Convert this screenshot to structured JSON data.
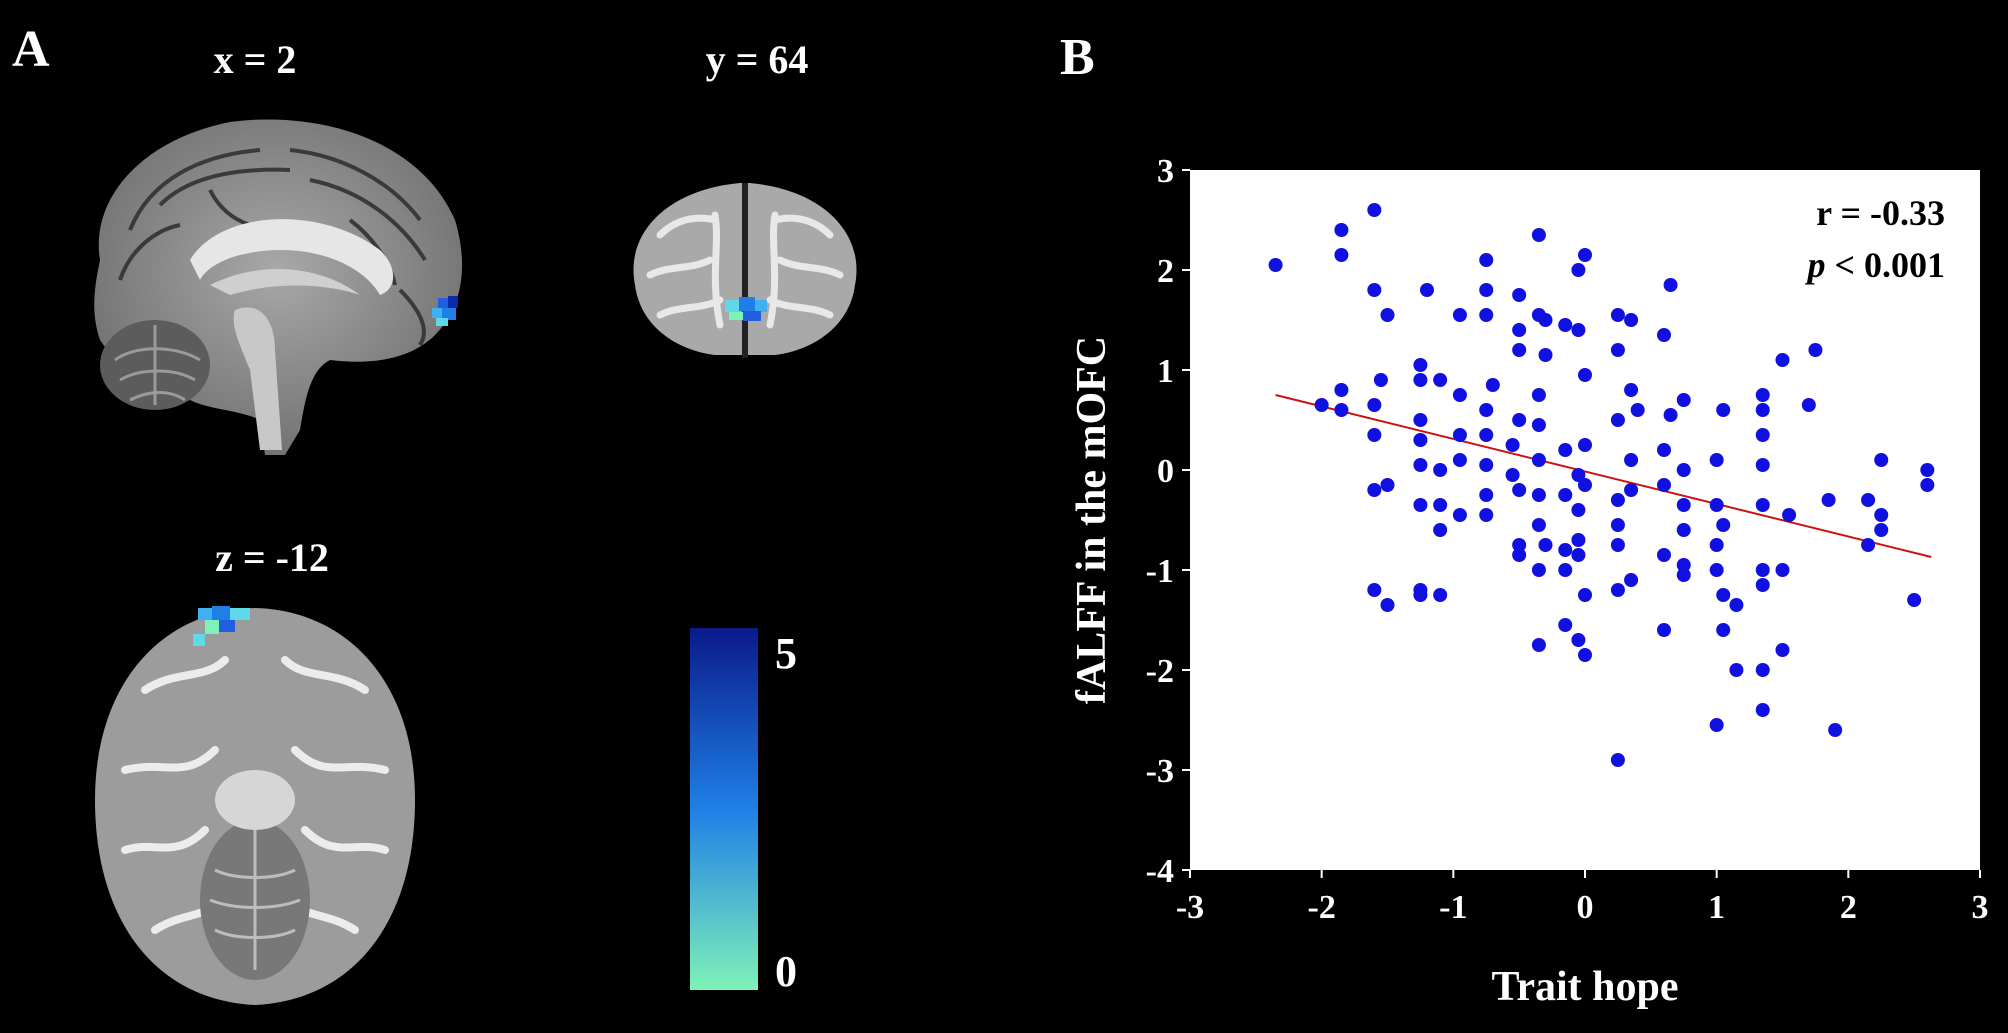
{
  "panels": {
    "a_label": "A",
    "b_label": "B"
  },
  "slices": {
    "sagittal": "x = 2",
    "coronal": "y = 64",
    "axial": "z = -12"
  },
  "colorbar": {
    "max_label": "5",
    "min_label": "0",
    "color_top": "#0a1a8a",
    "color_mid": "#1f7fe6",
    "color_bottom": "#7ff2b8"
  },
  "chart_data": {
    "type": "scatter",
    "xlabel": "Trait hope",
    "ylabel": "fALFF in the mOFC",
    "xlim": [
      -3,
      3
    ],
    "ylim": [
      -4,
      3
    ],
    "xticks": [
      -3,
      -2,
      -1,
      0,
      1,
      2,
      3
    ],
    "yticks": [
      -4,
      -3,
      -2,
      -1,
      0,
      1,
      2,
      3
    ],
    "annotation_r": "r = -0.33",
    "annotation_p_symbol": "p",
    "annotation_p_rest": " < 0.001",
    "point_color": "#1010e0",
    "line_color": "#cc1010",
    "fit_line": {
      "x": [
        -2.35,
        2.63
      ],
      "y": [
        0.75,
        -0.87
      ]
    },
    "points": [
      [
        -2.35,
        2.05
      ],
      [
        -1.85,
        2.4
      ],
      [
        -1.85,
        2.15
      ],
      [
        -1.6,
        2.6
      ],
      [
        -1.6,
        1.8
      ],
      [
        -1.5,
        1.55
      ],
      [
        -1.2,
        1.8
      ],
      [
        -0.75,
        2.1
      ],
      [
        -0.95,
        1.55
      ],
      [
        -0.75,
        1.55
      ],
      [
        -0.35,
        2.35
      ],
      [
        0.0,
        2.15
      ],
      [
        -0.3,
        1.5
      ],
      [
        -0.05,
        2.0
      ],
      [
        -0.5,
        1.75
      ],
      [
        0.65,
        1.85
      ],
      [
        -2.0,
        0.65
      ],
      [
        -1.85,
        0.8
      ],
      [
        -1.85,
        0.6
      ],
      [
        -1.6,
        0.65
      ],
      [
        -1.55,
        0.9
      ],
      [
        -1.6,
        0.35
      ],
      [
        -1.25,
        1.05
      ],
      [
        -1.25,
        0.9
      ],
      [
        -1.25,
        0.5
      ],
      [
        -1.25,
        0.3
      ],
      [
        -1.1,
        0.9
      ],
      [
        -0.95,
        0.75
      ],
      [
        -0.75,
        1.8
      ],
      [
        -0.75,
        0.6
      ],
      [
        -0.7,
        0.85
      ],
      [
        -0.5,
        1.4
      ],
      [
        -0.5,
        1.2
      ],
      [
        -0.35,
        1.55
      ],
      [
        -0.35,
        0.75
      ],
      [
        -0.3,
        1.15
      ],
      [
        -0.5,
        0.5
      ],
      [
        -0.35,
        0.45
      ],
      [
        -0.15,
        1.45
      ],
      [
        -0.05,
        1.4
      ],
      [
        0.0,
        0.95
      ],
      [
        0.25,
        1.55
      ],
      [
        0.35,
        1.5
      ],
      [
        0.25,
        1.2
      ],
      [
        0.35,
        0.8
      ],
      [
        0.4,
        0.6
      ],
      [
        0.6,
        1.35
      ],
      [
        0.75,
        0.7
      ],
      [
        0.25,
        0.5
      ],
      [
        0.65,
        0.55
      ],
      [
        1.05,
        0.6
      ],
      [
        1.35,
        0.75
      ],
      [
        1.5,
        1.1
      ],
      [
        1.75,
        1.2
      ],
      [
        1.7,
        0.65
      ],
      [
        1.35,
        0.6
      ],
      [
        -1.6,
        -0.2
      ],
      [
        -1.5,
        -0.15
      ],
      [
        -1.25,
        0.05
      ],
      [
        -1.25,
        -0.35
      ],
      [
        -1.1,
        0.0
      ],
      [
        -1.1,
        -0.35
      ],
      [
        -1.1,
        -0.6
      ],
      [
        -0.95,
        0.35
      ],
      [
        -0.95,
        0.1
      ],
      [
        -0.95,
        -0.45
      ],
      [
        -0.75,
        0.35
      ],
      [
        -0.75,
        0.05
      ],
      [
        -0.75,
        -0.25
      ],
      [
        -0.75,
        -0.45
      ],
      [
        -0.55,
        0.25
      ],
      [
        -0.55,
        -0.05
      ],
      [
        -0.5,
        -0.2
      ],
      [
        -0.35,
        0.1
      ],
      [
        -0.35,
        -0.25
      ],
      [
        -0.35,
        -0.55
      ],
      [
        -0.3,
        -0.75
      ],
      [
        -0.15,
        0.2
      ],
      [
        -0.15,
        -0.25
      ],
      [
        -0.05,
        -0.05
      ],
      [
        -0.05,
        -0.4
      ],
      [
        -0.05,
        -0.7
      ],
      [
        0.0,
        -0.15
      ],
      [
        0.0,
        0.25
      ],
      [
        0.25,
        -0.3
      ],
      [
        0.25,
        -0.55
      ],
      [
        0.35,
        -0.2
      ],
      [
        0.35,
        0.1
      ],
      [
        0.6,
        0.2
      ],
      [
        0.6,
        -0.15
      ],
      [
        0.75,
        0.0
      ],
      [
        0.75,
        -0.35
      ],
      [
        0.75,
        -0.6
      ],
      [
        1.0,
        0.1
      ],
      [
        1.0,
        -0.35
      ],
      [
        1.05,
        -0.55
      ],
      [
        1.35,
        0.35
      ],
      [
        1.35,
        0.05
      ],
      [
        1.35,
        -0.35
      ],
      [
        1.55,
        -0.45
      ],
      [
        1.85,
        -0.3
      ],
      [
        2.15,
        -0.3
      ],
      [
        2.25,
        0.1
      ],
      [
        2.25,
        -0.45
      ],
      [
        2.6,
        0.0
      ],
      [
        2.6,
        -0.15
      ],
      [
        -1.6,
        -1.2
      ],
      [
        -1.5,
        -1.35
      ],
      [
        -1.25,
        -1.2
      ],
      [
        -1.25,
        -1.25
      ],
      [
        -1.1,
        -1.25
      ],
      [
        -0.5,
        -0.75
      ],
      [
        -0.5,
        -0.85
      ],
      [
        -0.35,
        -1.0
      ],
      [
        -0.35,
        -1.75
      ],
      [
        -0.15,
        -0.8
      ],
      [
        -0.15,
        -1.0
      ],
      [
        -0.15,
        -1.55
      ],
      [
        -0.05,
        -0.85
      ],
      [
        0.0,
        -1.25
      ],
      [
        -0.05,
        -1.7
      ],
      [
        0.0,
        -1.85
      ],
      [
        0.25,
        -0.75
      ],
      [
        0.25,
        -1.2
      ],
      [
        0.35,
        -1.1
      ],
      [
        0.6,
        -0.85
      ],
      [
        0.6,
        -1.6
      ],
      [
        0.75,
        -0.95
      ],
      [
        0.75,
        -1.05
      ],
      [
        1.0,
        -0.75
      ],
      [
        1.0,
        -1.0
      ],
      [
        1.05,
        -1.25
      ],
      [
        1.05,
        -1.6
      ],
      [
        1.15,
        -1.35
      ],
      [
        1.15,
        -2.0
      ],
      [
        1.35,
        -1.0
      ],
      [
        1.35,
        -1.15
      ],
      [
        1.5,
        -1.0
      ],
      [
        1.5,
        -1.8
      ],
      [
        1.35,
        -2.0
      ],
      [
        1.35,
        -2.4
      ],
      [
        1.0,
        -2.55
      ],
      [
        1.9,
        -2.6
      ],
      [
        2.15,
        -0.75
      ],
      [
        2.25,
        -0.6
      ],
      [
        2.5,
        -1.3
      ],
      [
        0.25,
        -2.9
      ]
    ]
  }
}
